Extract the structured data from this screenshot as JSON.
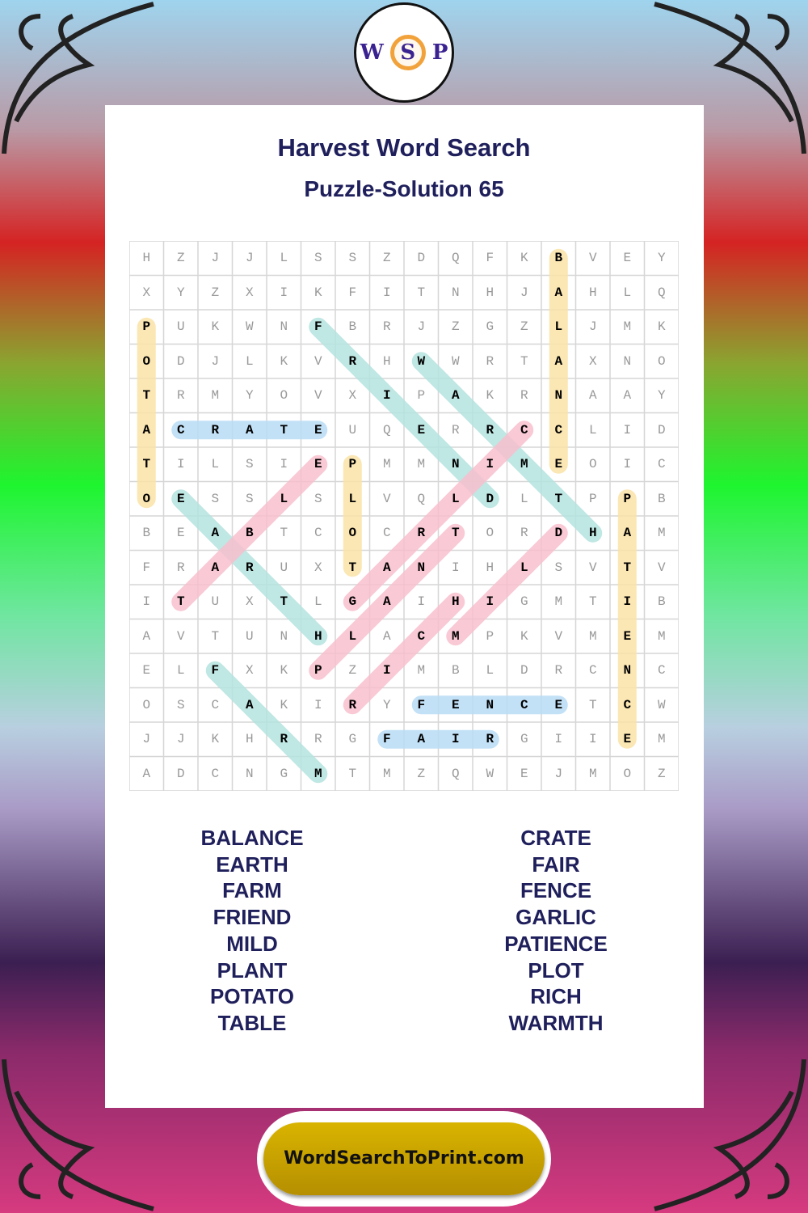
{
  "logo": {
    "letters": [
      "W",
      "S",
      "P"
    ]
  },
  "title": "Harvest Word Search",
  "subtitle": "Puzzle-Solution 65",
  "grid": [
    "HZJJLSSZDQFKBVEY",
    "XYZXIKFITNHJAHLQ",
    "PUKWNFBRJZGZLJMK",
    "ODJLKVRHWWRTAXNO",
    "TRMYOVXIPAKRNAAY",
    "ACRATEUQERRCCLID",
    "TILSIEPMMNIMEOIC",
    "OESSLSLVQLDLTPPB",
    "BEABTCOCRTORDHAM",
    "FRARUXTANIHLSVTV",
    "ITUXTLGAIHIGMTIB",
    "AVTUNHLACMPKVMEM",
    "ELFXKPZIMBLDRCNC",
    "OSCAKIRYFENCETCW",
    "JJKHRRGFAIRGIIEM",
    "ADCNGMTMZQWEJMOZ"
  ],
  "highlight_colors": {
    "vertical": "#fbe3a8",
    "horizontal": "#b9dcf5",
    "diag_down": "#b5e3df",
    "diag_up": "#f8c0ce"
  },
  "solutions": [
    {
      "word": "BALANCE",
      "start": [
        0,
        12
      ],
      "end": [
        6,
        12
      ],
      "dir": "vertical"
    },
    {
      "word": "POTATO",
      "start": [
        2,
        0
      ],
      "end": [
        7,
        0
      ],
      "dir": "vertical"
    },
    {
      "word": "PLOT",
      "start": [
        6,
        6
      ],
      "end": [
        9,
        6
      ],
      "dir": "vertical"
    },
    {
      "word": "PATIENCE",
      "start": [
        7,
        14
      ],
      "end": [
        14,
        14
      ],
      "dir": "vertical"
    },
    {
      "word": "CRATE",
      "start": [
        5,
        1
      ],
      "end": [
        5,
        5
      ],
      "dir": "horizontal"
    },
    {
      "word": "FENCE",
      "start": [
        13,
        8
      ],
      "end": [
        13,
        12
      ],
      "dir": "horizontal"
    },
    {
      "word": "FAIR",
      "start": [
        14,
        7
      ],
      "end": [
        14,
        10
      ],
      "dir": "horizontal"
    },
    {
      "word": "FRIEND",
      "start": [
        2,
        5
      ],
      "end": [
        7,
        10
      ],
      "dir": "diag_down"
    },
    {
      "word": "WARMTH",
      "start": [
        3,
        8
      ],
      "end": [
        8,
        13
      ],
      "dir": "diag_down"
    },
    {
      "word": "EARTH",
      "start": [
        7,
        1
      ],
      "end": [
        11,
        5
      ],
      "dir": "diag_down"
    },
    {
      "word": "FARM",
      "start": [
        12,
        2
      ],
      "end": [
        15,
        5
      ],
      "dir": "diag_down"
    },
    {
      "word": "TABLE",
      "start": [
        10,
        1
      ],
      "end": [
        6,
        5
      ],
      "dir": "diag_up"
    },
    {
      "word": "GARLIC",
      "start": [
        10,
        6
      ],
      "end": [
        5,
        11
      ],
      "dir": "diag_up"
    },
    {
      "word": "PLANT",
      "start": [
        12,
        5
      ],
      "end": [
        8,
        9
      ],
      "dir": "diag_up"
    },
    {
      "word": "RICH",
      "start": [
        13,
        6
      ],
      "end": [
        10,
        9
      ],
      "dir": "diag_up"
    },
    {
      "word": "MILD",
      "start": [
        11,
        9
      ],
      "end": [
        8,
        12
      ],
      "dir": "diag_up"
    }
  ],
  "word_list_left": [
    "BALANCE",
    "EARTH",
    "FARM",
    "FRIEND",
    "MILD",
    "PLANT",
    "POTATO",
    "TABLE"
  ],
  "word_list_right": [
    "CRATE",
    "FAIR",
    "FENCE",
    "GARLIC",
    "PATIENCE",
    "PLOT",
    "RICH",
    "WARMTH"
  ],
  "footer": "WordSearchToPrint.com"
}
